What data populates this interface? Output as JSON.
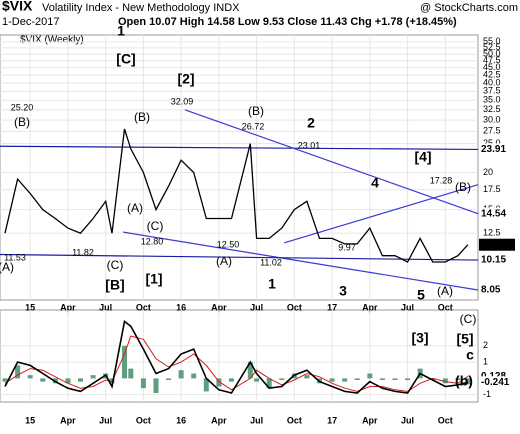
{
  "header": {
    "symbol": "$VIX",
    "name": "Volatility Index - New Methodology INDX",
    "source": "@ StockCharts.com",
    "date": "1-Dec-2017",
    "quote": "Open 10.07 High 14.58 Low 9.53 Close 11.43 Chg +1.78 (+18.45%)"
  },
  "chart_data": [
    {
      "type": "line",
      "legend": "$VIX (Weekly)",
      "log_scale": true,
      "grid": true,
      "x": [
        -2,
        -1,
        0,
        1,
        2,
        3,
        4,
        5,
        6,
        6.5,
        7.5,
        8,
        9,
        10,
        11,
        12,
        13,
        14,
        15,
        16,
        17.5,
        18,
        19,
        20,
        21,
        22,
        23,
        24,
        25,
        26,
        27,
        28,
        29,
        30,
        31,
        32,
        33,
        34,
        34.8
      ],
      "series": [
        {
          "name": "$VIX (Weekly)",
          "color": "#000000",
          "values": [
            12.5,
            19,
            17,
            15,
            14,
            13,
            12.5,
            14,
            16,
            12.5,
            28,
            24,
            20,
            15,
            18,
            22,
            20,
            14,
            14,
            14,
            25,
            12,
            12,
            13,
            15,
            16,
            12,
            12,
            11.5,
            11.5,
            13,
            10.5,
            10.5,
            10,
            12,
            10,
            10,
            10.5,
            11.43
          ]
        }
      ],
      "trendlines": [
        {
          "color": "#1a1aa6",
          "x": [
            -2.4,
            35.6
          ],
          "values": [
            24.5,
            23.91
          ]
        },
        {
          "color": "#3a3ad6",
          "x": [
            12.3,
            35.6
          ],
          "values": [
            32.5,
            14.54
          ]
        },
        {
          "color": "#3a3ad6",
          "x": [
            7.4,
            35.6
          ],
          "values": [
            12.6,
            8.05
          ]
        },
        {
          "color": "#3a3ad6",
          "x": [
            20.2,
            35.6
          ],
          "values": [
            11.6,
            18.2
          ]
        },
        {
          "color": "#1a1aa6",
          "x": [
            -2.4,
            35.6
          ],
          "values": [
            10.6,
            10.15
          ]
        }
      ],
      "xlim": [
        -2.4,
        35.6
      ],
      "xticks": [
        {
          "value": 0,
          "label": "15"
        },
        {
          "value": 3,
          "label": "Apr"
        },
        {
          "value": 6,
          "label": "Jul"
        },
        {
          "value": 9,
          "label": "Oct"
        },
        {
          "value": 12,
          "label": "16"
        },
        {
          "value": 15,
          "label": "Apr"
        },
        {
          "value": 18,
          "label": "Jul"
        },
        {
          "value": 21,
          "label": "Oct"
        },
        {
          "value": 24,
          "label": "17"
        },
        {
          "value": 27,
          "label": "Apr"
        },
        {
          "value": 30,
          "label": "Jul"
        },
        {
          "value": 33,
          "label": "Oct"
        }
      ],
      "ylim": [
        7.45,
        58
      ],
      "yticks": [
        {
          "value": 55,
          "label": "55.0"
        },
        52.5,
        {
          "value": 50,
          "label": "50.0"
        },
        47.5,
        {
          "value": 45,
          "label": "45.0"
        },
        42.5,
        {
          "value": 40,
          "label": "40.0"
        },
        37.5,
        {
          "value": 35,
          "label": "35.0"
        },
        32.5,
        {
          "value": 30,
          "label": "30.0"
        },
        27.5,
        {
          "value": 25,
          "label": "25.0"
        },
        20.0,
        17.5,
        {
          "value": 15,
          "label": "15.0"
        },
        12.5
      ],
      "annotations": [
        {
          "text": "[C]",
          "color": "#1a1aa6"
        },
        {
          "text": "1",
          "color": "#e00000"
        },
        {
          "text": "(B)",
          "color": "#000000"
        },
        {
          "text": "25.20",
          "color": "#000000"
        },
        {
          "text": "(B)",
          "color": "#000000"
        },
        {
          "text": "[2]",
          "color": "#1a1aa6"
        },
        {
          "text": "32.09",
          "color": "#000000"
        },
        {
          "text": "(B)",
          "color": "#000000"
        },
        {
          "text": "26.72",
          "color": "#000000"
        },
        {
          "text": "2",
          "color": "#9b1fc9"
        },
        {
          "text": "23.01",
          "color": "#000000"
        },
        {
          "text": "[4]",
          "color": "#1a1aa6"
        },
        {
          "text": "4",
          "color": "#9b1fc9"
        },
        {
          "text": "17.28",
          "color": "#000000"
        },
        {
          "text": "(B)",
          "color": "#000000"
        },
        {
          "text": "(A)",
          "color": "#000000"
        },
        {
          "text": "(C)",
          "color": "#000000"
        },
        {
          "text": "12.80",
          "color": "#000000"
        },
        {
          "text": "12.50",
          "color": "#000000"
        },
        {
          "text": "(A)",
          "color": "#000000"
        },
        {
          "text": "11.02",
          "color": "#000000"
        },
        {
          "text": "11.82",
          "color": "#000000"
        },
        {
          "text": "(C)",
          "color": "#000000"
        },
        {
          "text": "[B]",
          "color": "#1a1aa6"
        },
        {
          "text": "[1]",
          "color": "#1a1aa6"
        },
        {
          "text": "11.53",
          "color": "#000000"
        },
        {
          "text": "(A)",
          "color": "#000000"
        },
        {
          "text": "1",
          "color": "#9b1fc9"
        },
        {
          "text": "3",
          "color": "#9b1fc9"
        },
        {
          "text": "9.97",
          "color": "#000000"
        },
        {
          "text": "5",
          "color": "#9b1fc9"
        },
        {
          "text": "(A)",
          "color": "#000000"
        }
      ]
    },
    {
      "type": "macd",
      "grid": true,
      "x": [
        -2,
        -1,
        0,
        1,
        2,
        3,
        4,
        5,
        6,
        6.5,
        7.5,
        8,
        9,
        10,
        11,
        12,
        13,
        14,
        15,
        16,
        17.5,
        18,
        19,
        20,
        21,
        22,
        23,
        24,
        25,
        26,
        27,
        28,
        29,
        30,
        31,
        32,
        33,
        34,
        34.8
      ],
      "series": [
        {
          "name": "MACD",
          "color": "#000000",
          "values": [
            -0.5,
            1,
            0.8,
            0.3,
            -0.2,
            -0.6,
            -0.8,
            -0.3,
            0.2,
            -0.5,
            3.5,
            3.2,
            1.8,
            0.3,
            0.6,
            1.5,
            1.8,
            0,
            -0.7,
            -0.9,
            1,
            0.3,
            -0.6,
            -0.5,
            0.2,
            0.5,
            -0.2,
            -0.5,
            -0.8,
            -0.9,
            -0.2,
            -0.6,
            -0.8,
            -0.9,
            0.3,
            -0.1,
            -0.5,
            -0.4,
            -0.241
          ]
        },
        {
          "name": "Signal",
          "color": "#d02020",
          "values": [
            -0.3,
            0.2,
            0.6,
            0.5,
            0.1,
            -0.3,
            -0.6,
            -0.5,
            -0.1,
            -0.2,
            1.5,
            2.6,
            2.4,
            1.2,
            0.7,
            1.0,
            1.5,
            0.8,
            -0.2,
            -0.7,
            0,
            0.5,
            0,
            -0.4,
            -0.1,
            0.3,
            0.1,
            -0.3,
            -0.6,
            -0.8,
            -0.5,
            -0.5,
            -0.7,
            -0.8,
            -0.3,
            0,
            -0.2,
            -0.3,
            0.128
          ]
        },
        {
          "name": "Histogram",
          "color": "#5f9f7f",
          "values": [
            -0.2,
            0.8,
            0.2,
            -0.2,
            -0.3,
            -0.3,
            -0.2,
            0.2,
            0.3,
            -0.3,
            2,
            0.6,
            -0.6,
            -0.9,
            -0.1,
            0.5,
            0.3,
            -0.8,
            -0.5,
            -0.2,
            1,
            -0.2,
            -0.6,
            -0.1,
            0.3,
            0.2,
            -0.3,
            -0.2,
            -0.2,
            -0.1,
            0.3,
            -0.1,
            -0.1,
            -0.1,
            0.6,
            -0.1,
            -0.3,
            -0.1,
            -0.369
          ]
        }
      ],
      "ylim": [
        -1.45,
        4.2
      ],
      "yticks": [
        -1,
        1,
        2
      ],
      "annotations": [
        {
          "text": "(C)",
          "color": "#000000"
        },
        {
          "text": "[3]",
          "color": "#1a1aa6"
        },
        {
          "text": "[5]",
          "color": "#1a1aa6"
        },
        {
          "text": "c",
          "color": "#e00000"
        },
        {
          "text": "(b)",
          "color": "#1a9a1a"
        }
      ]
    }
  ]
}
